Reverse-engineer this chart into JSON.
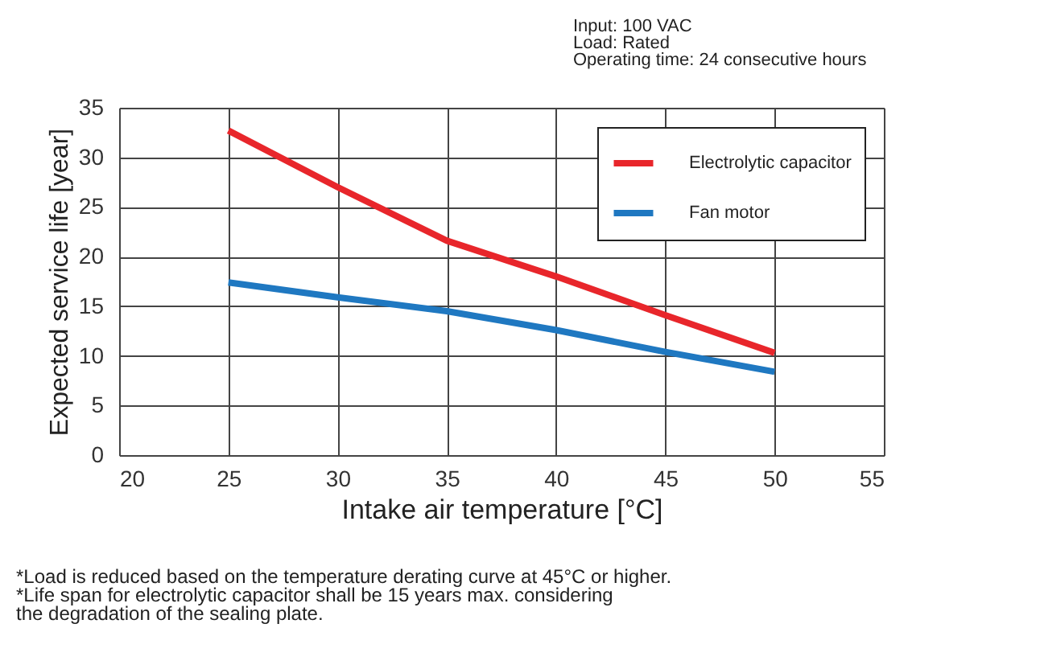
{
  "chart_data": {
    "type": "line",
    "xlabel": "Intake air temperature [°C]",
    "ylabel": "Expected service life [year]",
    "x": [
      25,
      30,
      35,
      40,
      45,
      50
    ],
    "series": [
      {
        "name": "Electrolytic capacitor",
        "color": "#e8262b",
        "values": [
          32.7,
          27,
          21.6,
          18,
          14.1,
          10.3
        ]
      },
      {
        "name": "Fan motor",
        "color": "#1f78c1",
        "values": [
          17.4,
          15.9,
          14.5,
          12.6,
          10.4,
          8.4
        ]
      }
    ],
    "xlim": [
      20,
      55
    ],
    "xticks": [
      20,
      25,
      30,
      35,
      40,
      45,
      50,
      55
    ],
    "ylim": [
      0,
      35
    ],
    "yticks": [
      0,
      5,
      10,
      15,
      20,
      25,
      30,
      35
    ],
    "grid": true,
    "legend": "top right",
    "marker": "none",
    "line_style": "solid",
    "annotations": [
      "Input: 100 VAC",
      "Load: Rated",
      "Operating time: 24 consecutive hours",
      "*Load is reduced based on the temperature derating curve at 45°C or higher.",
      "*Life span for electrolytic capacitor shall be 15 years max. considering",
      " the degradation of the sealing plate."
    ]
  }
}
